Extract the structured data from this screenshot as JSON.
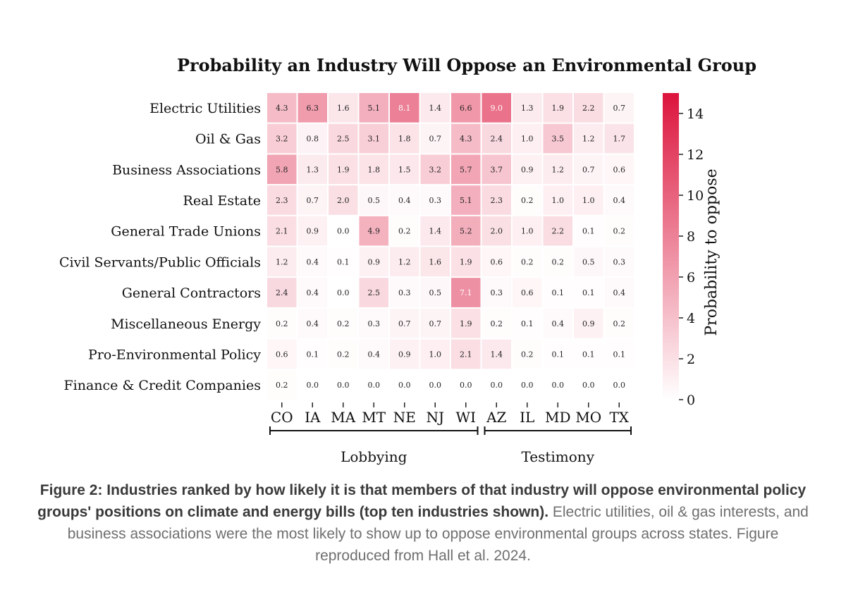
{
  "chart_data": {
    "type": "heatmap",
    "title": "Probability an Industry Will Oppose an Environmental Group",
    "rows": [
      "Electric Utilities",
      "Oil & Gas",
      "Business Associations",
      "Real Estate",
      "General Trade Unions",
      "Civil Servants/Public Officials",
      "General Contractors",
      "Miscellaneous Energy",
      "Pro-Environmental Policy",
      "Finance & Credit Companies"
    ],
    "columns": [
      "CO",
      "IA",
      "MA",
      "MT",
      "NE",
      "NJ",
      "WI",
      "AZ",
      "IL",
      "MD",
      "MO",
      "TX"
    ],
    "values": [
      [
        4.3,
        6.3,
        1.6,
        5.1,
        8.1,
        1.4,
        6.6,
        9.0,
        1.3,
        1.9,
        2.2,
        0.7
      ],
      [
        3.2,
        0.8,
        2.5,
        3.1,
        1.8,
        0.7,
        4.3,
        2.4,
        1.0,
        3.5,
        1.2,
        1.7
      ],
      [
        5.8,
        1.3,
        1.9,
        1.8,
        1.5,
        3.2,
        5.7,
        3.7,
        0.9,
        1.2,
        0.7,
        0.6
      ],
      [
        2.3,
        0.7,
        2.0,
        0.5,
        0.4,
        0.3,
        5.1,
        2.3,
        0.2,
        1.0,
        1.0,
        0.4
      ],
      [
        2.1,
        0.9,
        0.0,
        4.9,
        0.2,
        1.4,
        5.2,
        2.0,
        1.0,
        2.2,
        0.1,
        0.2
      ],
      [
        1.2,
        0.4,
        0.1,
        0.9,
        1.2,
        1.6,
        1.9,
        0.6,
        0.2,
        0.2,
        0.5,
        0.3
      ],
      [
        2.4,
        0.4,
        0.0,
        2.5,
        0.3,
        0.5,
        7.1,
        0.3,
        0.6,
        0.1,
        0.1,
        0.4
      ],
      [
        0.2,
        0.4,
        0.2,
        0.3,
        0.7,
        0.7,
        1.9,
        0.2,
        0.1,
        0.4,
        0.9,
        0.2
      ],
      [
        0.6,
        0.1,
        0.2,
        0.4,
        0.9,
        1.0,
        2.1,
        1.4,
        0.2,
        0.1,
        0.1,
        0.1
      ],
      [
        0.2,
        0.0,
        0.0,
        0.0,
        0.0,
        0.0,
        0.0,
        0.0,
        0.0,
        0.0,
        0.0,
        0.0
      ]
    ],
    "groups": [
      {
        "label": "Lobbying",
        "columns": [
          "CO",
          "IA",
          "MA",
          "MT",
          "NE",
          "NJ",
          "WI"
        ]
      },
      {
        "label": "Testimony",
        "columns": [
          "AZ",
          "IL",
          "MD",
          "MO",
          "TX"
        ]
      }
    ],
    "colorbar": {
      "label": "Probability to oppose",
      "range": [
        0,
        15
      ],
      "ticks": [
        0,
        2,
        4,
        6,
        8,
        10,
        12,
        14
      ],
      "color_low": "#ffffff",
      "color_high": "#dc143c"
    }
  },
  "caption": {
    "bold": "Figure 2: Industries ranked by how likely it is that members of that industry will oppose environmental policy groups' positions on climate and energy bills (top ten industries shown).",
    "text": " Electric utilities, oil & gas interests, and business associations were the most likely to show up to oppose environmental groups across states. Figure reproduced from Hall et al. 2024."
  }
}
